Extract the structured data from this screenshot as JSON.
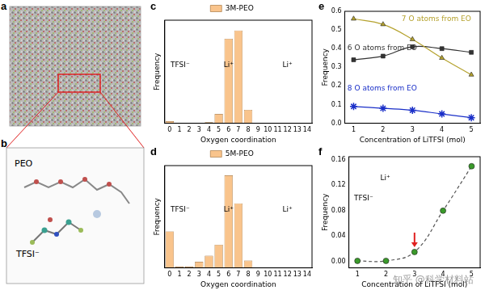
{
  "panels": [
    {
      "panel": "a"
    },
    {
      "panel": "b",
      "labels": [
        "PEO",
        "TFSI⁻"
      ]
    }
  ],
  "chart_data": [
    {
      "panel": "c",
      "type": "bar",
      "x_label": "Oxygen coordination",
      "y_label": "Frequency",
      "categories": [
        "0",
        "1",
        "2",
        "3",
        "4",
        "5",
        "6",
        "7",
        "8",
        "9",
        "10",
        "11",
        "12",
        "13",
        "14"
      ],
      "series": [
        {
          "name": "3M-PEO",
          "color": "#f9c48c",
          "values": [
            0.01,
            0,
            0,
            0,
            0.005,
            0.045,
            0.41,
            0.45,
            0.065,
            0,
            0,
            0,
            0,
            0,
            0
          ]
        }
      ],
      "ylim": [
        0,
        0.5
      ],
      "tick_labels": "x",
      "legend": "top",
      "grid": false,
      "annotations": [
        "TFSI⁻",
        "Li⁺",
        "Li⁺"
      ]
    },
    {
      "panel": "d",
      "type": "bar",
      "x_label": "Oxygen coordination",
      "y_label": "Frequency",
      "categories": [
        "0",
        "1",
        "2",
        "3",
        "4",
        "5",
        "6",
        "7",
        "8",
        "9",
        "10",
        "11",
        "12",
        "13",
        "14"
      ],
      "series": [
        {
          "name": "5M-PEO",
          "color": "#f9c48c",
          "values": [
            0.15,
            0.005,
            0.005,
            0.025,
            0.05,
            0.095,
            0.38,
            0.265,
            0.03,
            0,
            0,
            0,
            0,
            0,
            0
          ]
        }
      ],
      "ylim": [
        0,
        0.42
      ],
      "tick_labels": "x",
      "legend": "top",
      "grid": false,
      "annotations": [
        "TFSI⁻",
        "Li⁺",
        "Li⁺"
      ]
    },
    {
      "panel": "e",
      "type": "line",
      "x_label": "Concentration of LiTFSI (mol)",
      "y_label": "Frequency",
      "x": [
        1,
        2,
        3,
        4,
        5
      ],
      "series": [
        {
          "name": "7 O atoms from EO",
          "color": "#b5a22e",
          "marker": "triangle",
          "line_style": "solid",
          "values": [
            0.56,
            0.53,
            0.45,
            0.35,
            0.26
          ]
        },
        {
          "name": "6 O atoms from EO",
          "color": "#333333",
          "marker": "square",
          "line_style": "solid",
          "values": [
            0.34,
            0.36,
            0.41,
            0.4,
            0.38
          ]
        },
        {
          "name": "8 O atoms from EO",
          "color": "#1a2fc8",
          "marker": "star",
          "line_style": "solid",
          "values": [
            0.09,
            0.08,
            0.07,
            0.05,
            0.03
          ]
        }
      ],
      "xlim": [
        0.7,
        5.3
      ],
      "xticks": [
        1,
        2,
        3,
        4,
        5
      ],
      "ylim": [
        0,
        0.6
      ],
      "yticks": [
        {
          "value": 0,
          "label": "0.0"
        },
        0.1,
        0.2,
        0.3,
        0.4,
        0.5,
        0.6
      ],
      "grid": false
    },
    {
      "panel": "f",
      "type": "scatter",
      "x_label": "Concentration of LiTFSI (mol)",
      "y_label": "Frequency",
      "x": [
        1,
        2,
        3,
        4,
        5
      ],
      "series": [
        {
          "color": "#3a9a2a",
          "marker": "circle",
          "line_style": "dashed",
          "values": [
            0.001,
            0.001,
            0.015,
            0.08,
            0.15
          ]
        }
      ],
      "xlim": [
        0.7,
        5.3
      ],
      "xticks": [
        1,
        2,
        3,
        4,
        5
      ],
      "ylim": [
        -0.01,
        0.165
      ],
      "yticks": [
        {
          "value": 0,
          "label": "0.00"
        },
        0.04,
        0.08,
        0.12,
        0.16
      ],
      "grid": false,
      "annotations": [
        "Li⁺",
        "TFSI⁻"
      ]
    }
  ],
  "watermark": "知乎 @科学材料站"
}
